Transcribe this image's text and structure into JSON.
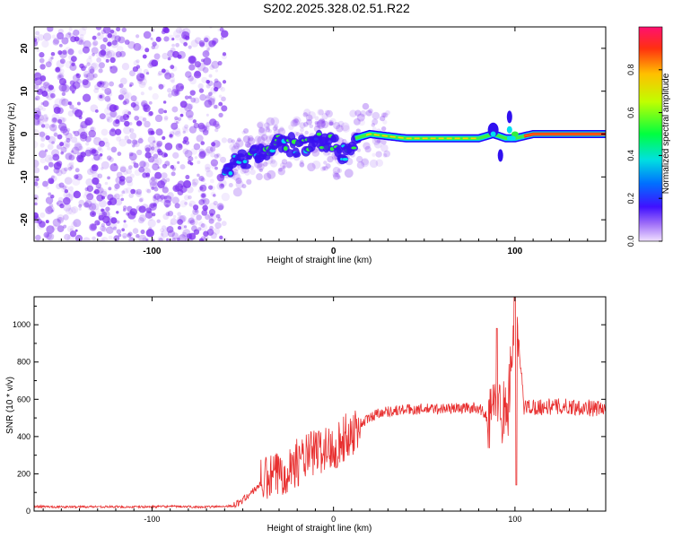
{
  "title": "S202.2025.328.02.51.R22",
  "colors": {
    "snr_line": "#e83030",
    "scatter": "#7c2cf0",
    "axis": "#000000",
    "background": "#ffffff"
  },
  "chart_data": [
    {
      "type": "heatmap",
      "title": "S202.2025.328.02.51.R22",
      "xlabel": "Height of straight line (km)",
      "ylabel": "Frequency (Hz)",
      "xlim": [
        -165,
        150
      ],
      "ylim": [
        -25,
        25
      ],
      "xticks": [
        {
          "v": -100,
          "label": "-100"
        },
        {
          "v": 0,
          "label": "0"
        },
        {
          "v": 100,
          "label": "100"
        }
      ],
      "yticks": [
        {
          "v": 20,
          "label": "20"
        },
        {
          "v": 10,
          "label": "10"
        },
        {
          "v": 0,
          "label": "0"
        },
        {
          "v": -10,
          "label": "-10"
        },
        {
          "v": -20,
          "label": "-20"
        }
      ],
      "colorbar": {
        "label": "Normalized spectral amplitude",
        "range": [
          0,
          1
        ],
        "ticks": [
          {
            "v": 0.0,
            "label": "0.0"
          },
          {
            "v": 0.2,
            "label": "0.2"
          },
          {
            "v": 0.4,
            "label": "0.4"
          },
          {
            "v": 0.6,
            "label": "0.6"
          },
          {
            "v": 0.8,
            "label": "0.8"
          }
        ]
      },
      "noise_region_km": [
        -165,
        -60
      ],
      "ridge": [
        {
          "x": -60,
          "y": -8
        },
        {
          "x": -50,
          "y": -6
        },
        {
          "x": -40,
          "y": -4
        },
        {
          "x": -30,
          "y": -2
        },
        {
          "x": -20,
          "y": -3
        },
        {
          "x": -10,
          "y": -1
        },
        {
          "x": 0,
          "y": -2
        },
        {
          "x": 5,
          "y": -5
        },
        {
          "x": 12,
          "y": -1
        },
        {
          "x": 20,
          "y": 0
        },
        {
          "x": 40,
          "y": -1
        },
        {
          "x": 60,
          "y": -1
        },
        {
          "x": 80,
          "y": -1
        },
        {
          "x": 88,
          "y": 0
        },
        {
          "x": 95,
          "y": -1
        },
        {
          "x": 100,
          "y": -1
        },
        {
          "x": 110,
          "y": 0
        },
        {
          "x": 130,
          "y": 0
        },
        {
          "x": 150,
          "y": 0
        }
      ]
    },
    {
      "type": "line",
      "xlabel": "Height of straight line (km)",
      "ylabel": "SNR (10 * v/v)",
      "xlim": [
        -165,
        150
      ],
      "ylim": [
        0,
        1150
      ],
      "xticks": [
        {
          "v": -100,
          "label": "-100"
        },
        {
          "v": 0,
          "label": "0"
        },
        {
          "v": 100,
          "label": "100"
        }
      ],
      "yticks": [
        {
          "v": 0,
          "label": "0"
        },
        {
          "v": 200,
          "label": "200"
        },
        {
          "v": 400,
          "label": "400"
        },
        {
          "v": 600,
          "label": "600"
        },
        {
          "v": 800,
          "label": "800"
        },
        {
          "v": 1000,
          "label": "1000"
        }
      ],
      "series": [
        {
          "name": "SNR",
          "points": [
            {
              "x": -165,
              "y": 25
            },
            {
              "x": -150,
              "y": 22
            },
            {
              "x": -130,
              "y": 24
            },
            {
              "x": -110,
              "y": 22
            },
            {
              "x": -90,
              "y": 25
            },
            {
              "x": -70,
              "y": 22
            },
            {
              "x": -55,
              "y": 28
            },
            {
              "x": -50,
              "y": 60
            },
            {
              "x": -45,
              "y": 100
            },
            {
              "x": -40,
              "y": 150
            },
            {
              "x": -30,
              "y": 200
            },
            {
              "x": -20,
              "y": 260
            },
            {
              "x": -10,
              "y": 320
            },
            {
              "x": 0,
              "y": 340
            },
            {
              "x": 5,
              "y": 380
            },
            {
              "x": 10,
              "y": 420
            },
            {
              "x": 15,
              "y": 470
            },
            {
              "x": 25,
              "y": 530
            },
            {
              "x": 40,
              "y": 545
            },
            {
              "x": 60,
              "y": 550
            },
            {
              "x": 80,
              "y": 555
            },
            {
              "x": 85,
              "y": 500
            },
            {
              "x": 90,
              "y": 560
            },
            {
              "x": 96,
              "y": 520
            },
            {
              "x": 100,
              "y": 1130
            },
            {
              "x": 105,
              "y": 560
            },
            {
              "x": 120,
              "y": 560
            },
            {
              "x": 135,
              "y": 560
            },
            {
              "x": 150,
              "y": 545
            }
          ]
        }
      ]
    }
  ]
}
